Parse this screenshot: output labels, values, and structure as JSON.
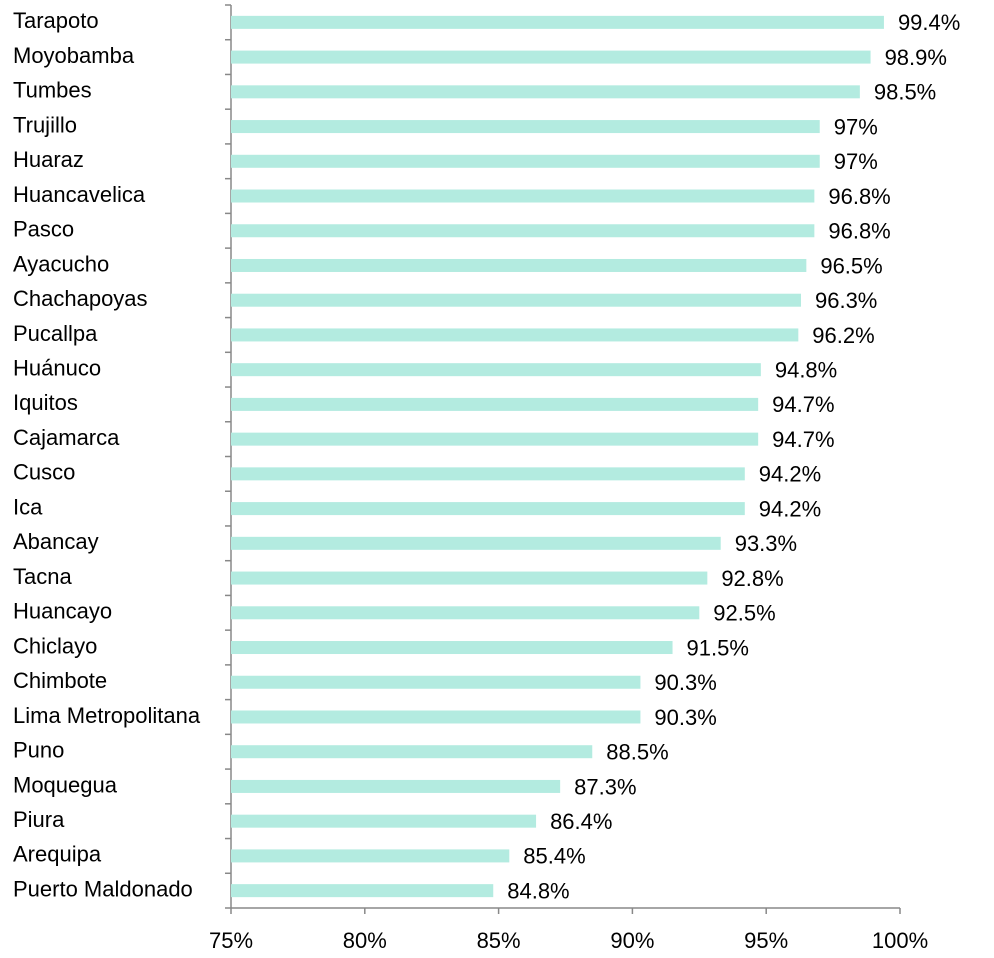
{
  "chart_data": {
    "type": "hbar",
    "categories": [
      "Tarapoto",
      "Moyobamba",
      "Tumbes",
      "Trujillo",
      "Huaraz",
      "Huancavelica",
      "Pasco",
      "Ayacucho",
      "Chachapoyas",
      "Pucallpa",
      "Huánuco",
      "Iquitos",
      "Cajamarca",
      "Cusco",
      "Ica",
      "Abancay",
      "Tacna",
      "Huancayo",
      "Chiclayo",
      "Chimbote",
      "Lima Metropolitana",
      "Puno",
      "Moquegua",
      "Piura",
      "Arequipa",
      "Puerto Maldonado"
    ],
    "values": [
      99.4,
      98.9,
      98.5,
      97,
      97,
      96.8,
      96.8,
      96.5,
      96.3,
      96.2,
      94.8,
      94.7,
      94.7,
      94.2,
      94.2,
      93.3,
      92.8,
      92.5,
      91.5,
      90.3,
      90.3,
      88.5,
      87.3,
      86.4,
      85.4,
      84.8
    ],
    "value_labels": [
      "99.4%",
      "98.9%",
      "98.5%",
      "97%",
      "97%",
      "96.8%",
      "96.8%",
      "96.5%",
      "96.3%",
      "96.2%",
      "94.8%",
      "94.7%",
      "94.7%",
      "94.2%",
      "94.2%",
      "93.3%",
      "92.8%",
      "92.5%",
      "91.5%",
      "90.3%",
      "90.3%",
      "88.5%",
      "87.3%",
      "86.4%",
      "85.4%",
      "84.8%"
    ],
    "color": "#b3ebe0",
    "xlim": [
      75,
      100
    ],
    "xticks": [
      {
        "value": 75,
        "label": "75%"
      },
      {
        "value": 80,
        "label": "80%"
      },
      {
        "value": 85,
        "label": "85%"
      },
      {
        "value": 90,
        "label": "90%"
      },
      {
        "value": 95,
        "label": "95%"
      },
      {
        "value": 100,
        "label": "100%"
      }
    ]
  }
}
